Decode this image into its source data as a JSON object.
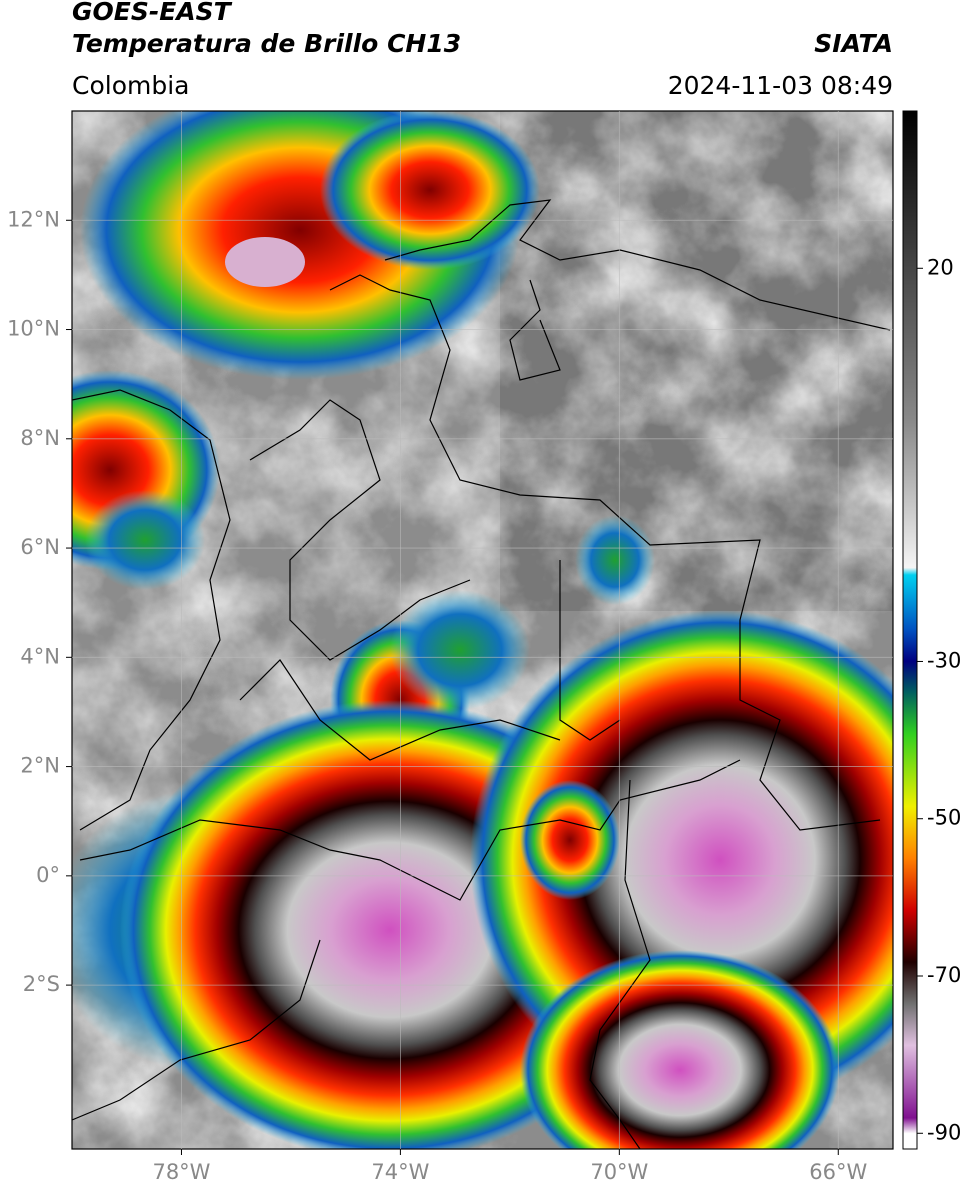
{
  "map": {
    "title": "GOES-EAST",
    "subtitle": "Temperatura de Brillo CH13",
    "source": "SIATA",
    "region": "Colombia",
    "datetime": "2024-11-03 08:49",
    "xlim": [
      -80,
      -65
    ],
    "ylim": [
      -5,
      14
    ],
    "xticks": [
      {
        "value": -78,
        "label": "78°W"
      },
      {
        "value": -74,
        "label": "74°W"
      },
      {
        "value": -70,
        "label": "70°W"
      },
      {
        "value": -66,
        "label": "66°W"
      }
    ],
    "yticks": [
      {
        "value": 12,
        "label": "12°N"
      },
      {
        "value": 10,
        "label": "10°N"
      },
      {
        "value": 8,
        "label": "8°N"
      },
      {
        "value": 6,
        "label": "6°N"
      },
      {
        "value": 4,
        "label": "4°N"
      },
      {
        "value": 2,
        "label": "2°N"
      },
      {
        "value": 0,
        "label": "0°"
      },
      {
        "value": -2,
        "label": "2°S"
      }
    ],
    "grid": true,
    "colorbar": {
      "lim": [
        -92,
        40
      ],
      "ticks": [
        20,
        -30,
        -50,
        -70,
        -90
      ]
    }
  }
}
